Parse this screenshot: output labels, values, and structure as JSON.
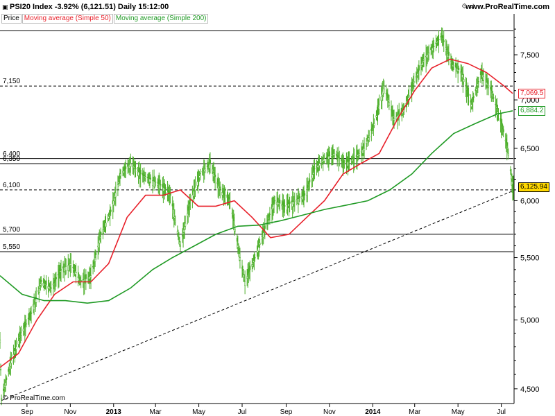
{
  "header": {
    "title": "PSI20 Index   -3.92% (6,121.51)   Daily   15:12:00",
    "site": "www.ProRealTime.com"
  },
  "legend": {
    "items": [
      "Price",
      "Moving average (Simple 50)",
      "Moving average (Simple 200)"
    ]
  },
  "copyright": "© ProRealTime.com",
  "colors": {
    "ma50": "#e8202a",
    "ma200": "#1f9a24",
    "candle": "#4caf2a",
    "last_price_bg": "#ffd800"
  },
  "chart_data": {
    "type": "line",
    "title": "PSI20 Index",
    "y_scale": "log",
    "ylim": [
      4400,
      7850
    ],
    "y_ticks": [
      "4,500",
      "5,000",
      "5,500",
      "6,000",
      "6,500",
      "7,000",
      "7,500"
    ],
    "y_tick_values": [
      4500,
      5000,
      5500,
      6000,
      6500,
      7000,
      7500
    ],
    "x_ticks": [
      "Sep",
      "Nov",
      "2013",
      "Mar",
      "May",
      "Jul",
      "Sep",
      "Nov",
      "2014",
      "Mar",
      "May",
      "Jul"
    ],
    "x_tick_dates": [
      "2012-09-01",
      "2012-11-01",
      "2013-01-01",
      "2013-03-01",
      "2013-05-01",
      "2013-07-01",
      "2013-09-01",
      "2013-11-01",
      "2014-01-01",
      "2014-03-01",
      "2014-05-01",
      "2014-07-01"
    ],
    "x_range": [
      "2012-07-25",
      "2014-07-18"
    ],
    "horizontal_levels": [
      {
        "label": "7,150",
        "value": 7150,
        "style": "dashed"
      },
      {
        "label": "6,400",
        "value": 6400,
        "style": "solid"
      },
      {
        "label": "6,350",
        "value": 6350,
        "style": "solid"
      },
      {
        "label": "6,100",
        "value": 6100,
        "style": "dashed"
      },
      {
        "label": "5,700",
        "value": 5700,
        "style": "solid"
      },
      {
        "label": "5,550",
        "value": 5550,
        "style": "solid"
      }
    ],
    "top_line": {
      "value": 7780,
      "style": "solid"
    },
    "trendline": {
      "points": [
        [
          "2012-07-27",
          4420
        ],
        [
          "2014-07-17",
          6090
        ]
      ],
      "style": "dashed"
    },
    "price_labels": [
      {
        "label": "7,069.5",
        "value": 7069.5,
        "color": "#e8202a"
      },
      {
        "label": "6,884.2",
        "value": 6884.2,
        "color": "#1f9a24"
      },
      {
        "label": "6,125.94",
        "value": 6125.94,
        "color": "#ffd800"
      }
    ],
    "series": [
      {
        "name": "Price",
        "points": [
          [
            "2012-07-25",
            4850
          ],
          [
            "2012-07-27",
            4430
          ],
          [
            "2012-08-10",
            4700
          ],
          [
            "2012-08-24",
            4900
          ],
          [
            "2012-09-07",
            5050
          ],
          [
            "2012-09-21",
            5300
          ],
          [
            "2012-10-05",
            5250
          ],
          [
            "2012-10-19",
            5400
          ],
          [
            "2012-11-02",
            5450
          ],
          [
            "2012-11-16",
            5300
          ],
          [
            "2012-11-30",
            5350
          ],
          [
            "2012-12-14",
            5700
          ],
          [
            "2012-12-28",
            5900
          ],
          [
            "2013-01-11",
            6250
          ],
          [
            "2013-01-25",
            6350
          ],
          [
            "2013-02-08",
            6250
          ],
          [
            "2013-02-22",
            6200
          ],
          [
            "2013-03-08",
            6150
          ],
          [
            "2013-03-22",
            6050
          ],
          [
            "2013-04-05",
            5600
          ],
          [
            "2013-04-19",
            6000
          ],
          [
            "2013-05-03",
            6250
          ],
          [
            "2013-05-17",
            6350
          ],
          [
            "2013-05-31",
            6100
          ],
          [
            "2013-06-14",
            6000
          ],
          [
            "2013-06-28",
            5500
          ],
          [
            "2013-07-05",
            5300
          ],
          [
            "2013-07-19",
            5500
          ],
          [
            "2013-08-02",
            5750
          ],
          [
            "2013-08-16",
            6000
          ],
          [
            "2013-08-30",
            5950
          ],
          [
            "2013-09-13",
            6000
          ],
          [
            "2013-09-27",
            6050
          ],
          [
            "2013-10-11",
            6300
          ],
          [
            "2013-10-25",
            6400
          ],
          [
            "2013-11-08",
            6450
          ],
          [
            "2013-11-22",
            6350
          ],
          [
            "2013-12-06",
            6400
          ],
          [
            "2013-12-20",
            6500
          ],
          [
            "2014-01-03",
            6750
          ],
          [
            "2014-01-17",
            7150
          ],
          [
            "2014-01-31",
            6800
          ],
          [
            "2014-02-14",
            6900
          ],
          [
            "2014-02-28",
            7200
          ],
          [
            "2014-03-14",
            7450
          ],
          [
            "2014-03-28",
            7600
          ],
          [
            "2014-04-08",
            7720
          ],
          [
            "2014-04-22",
            7400
          ],
          [
            "2014-05-06",
            7300
          ],
          [
            "2014-05-20",
            6950
          ],
          [
            "2014-06-03",
            7300
          ],
          [
            "2014-06-17",
            7100
          ],
          [
            "2014-07-01",
            6750
          ],
          [
            "2014-07-10",
            6500
          ],
          [
            "2014-07-17",
            6126
          ]
        ]
      },
      {
        "name": "Moving average (Simple 50)",
        "points": [
          [
            "2012-07-25",
            4650
          ],
          [
            "2012-08-20",
            4750
          ],
          [
            "2012-09-15",
            5000
          ],
          [
            "2012-10-10",
            5200
          ],
          [
            "2012-11-05",
            5300
          ],
          [
            "2012-11-30",
            5300
          ],
          [
            "2012-12-25",
            5450
          ],
          [
            "2013-01-20",
            5850
          ],
          [
            "2013-02-15",
            6050
          ],
          [
            "2013-03-12",
            6050
          ],
          [
            "2013-04-05",
            6100
          ],
          [
            "2013-04-30",
            5950
          ],
          [
            "2013-05-25",
            5950
          ],
          [
            "2013-06-20",
            6000
          ],
          [
            "2013-07-15",
            5850
          ],
          [
            "2013-08-10",
            5670
          ],
          [
            "2013-09-05",
            5700
          ],
          [
            "2013-09-30",
            5850
          ],
          [
            "2013-10-25",
            6000
          ],
          [
            "2013-11-20",
            6250
          ],
          [
            "2013-12-15",
            6350
          ],
          [
            "2014-01-10",
            6450
          ],
          [
            "2014-02-05",
            6800
          ],
          [
            "2014-03-01",
            7100
          ],
          [
            "2014-03-25",
            7350
          ],
          [
            "2014-04-20",
            7450
          ],
          [
            "2014-05-15",
            7400
          ],
          [
            "2014-06-10",
            7300
          ],
          [
            "2014-07-05",
            7150
          ],
          [
            "2014-07-17",
            7069.5
          ]
        ]
      },
      {
        "name": "Moving average (Simple 200)",
        "points": [
          [
            "2012-07-25",
            5350
          ],
          [
            "2012-08-25",
            5200
          ],
          [
            "2012-09-25",
            5150
          ],
          [
            "2012-10-25",
            5150
          ],
          [
            "2012-11-25",
            5130
          ],
          [
            "2012-12-25",
            5150
          ],
          [
            "2013-01-25",
            5250
          ],
          [
            "2013-02-25",
            5400
          ],
          [
            "2013-03-25",
            5500
          ],
          [
            "2013-04-25",
            5600
          ],
          [
            "2013-05-25",
            5700
          ],
          [
            "2013-06-25",
            5770
          ],
          [
            "2013-07-25",
            5780
          ],
          [
            "2013-08-25",
            5820
          ],
          [
            "2013-09-25",
            5870
          ],
          [
            "2013-10-25",
            5920
          ],
          [
            "2013-11-25",
            5960
          ],
          [
            "2013-12-25",
            6000
          ],
          [
            "2014-01-25",
            6100
          ],
          [
            "2014-02-25",
            6250
          ],
          [
            "2014-03-25",
            6450
          ],
          [
            "2014-04-25",
            6650
          ],
          [
            "2014-05-25",
            6750
          ],
          [
            "2014-06-25",
            6850
          ],
          [
            "2014-07-17",
            6884.2
          ]
        ]
      }
    ]
  }
}
